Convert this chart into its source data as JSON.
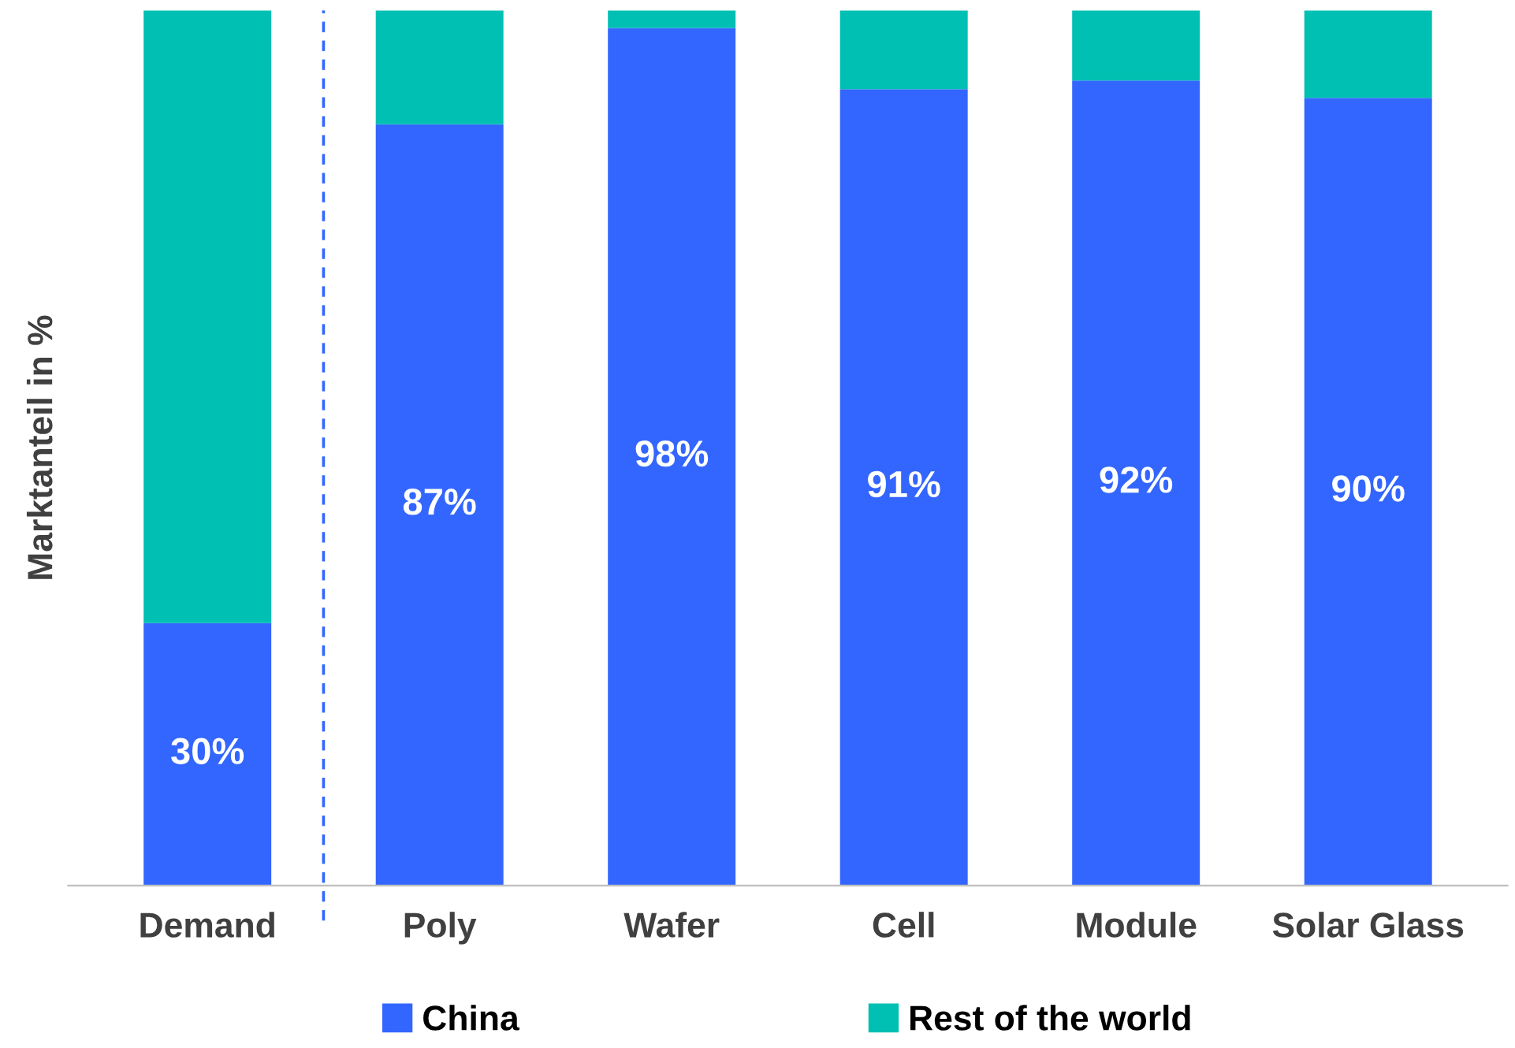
{
  "chart_data": {
    "type": "bar",
    "stacked": true,
    "ylabel": "Marktanteil in %",
    "categories": [
      "Demand",
      "Poly",
      "Wafer",
      "Cell",
      "Module",
      "Solar Glass"
    ],
    "series": [
      {
        "name": "China",
        "color": "#3366ff",
        "values": [
          30,
          87,
          98,
          91,
          92,
          90
        ],
        "value_labels": [
          "30%",
          "87%",
          "98%",
          "91%",
          "92%",
          "90%"
        ]
      },
      {
        "name": "Rest of the world",
        "color": "#00bfb3",
        "values": [
          70,
          13,
          2,
          9,
          8,
          10
        ]
      }
    ],
    "ylim": [
      0,
      100
    ],
    "tick_labels": "x",
    "legend": "bottom",
    "grid": false
  }
}
